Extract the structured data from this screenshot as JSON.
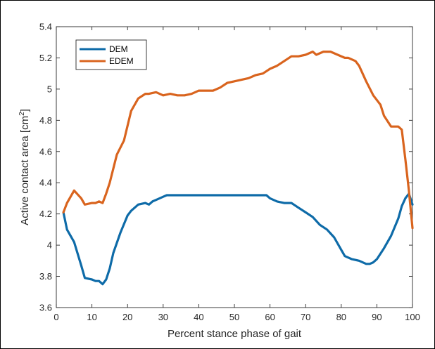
{
  "chart_data": {
    "type": "line",
    "title": "",
    "xlabel": "Percent stance phase of gait",
    "ylabel_main": "Active contact area [cm",
    "ylabel_sup": "2",
    "ylabel_end": "]",
    "xlim": [
      0,
      100
    ],
    "ylim": [
      3.6,
      5.4
    ],
    "xticks": [
      0,
      10,
      20,
      30,
      40,
      50,
      60,
      70,
      80,
      90,
      100
    ],
    "xtick_labels": [
      "0",
      "10",
      "20",
      "30",
      "40",
      "50",
      "60",
      "70",
      "80",
      "90",
      "100"
    ],
    "yticks": [
      3.6,
      3.8,
      4,
      4.2,
      4.4,
      4.6,
      4.8,
      5,
      5.2,
      5.4
    ],
    "ytick_labels": [
      "3.6",
      "3.8",
      "4",
      "4.2",
      "4.4",
      "4.6",
      "4.8",
      "5",
      "5.2",
      "5.4"
    ],
    "grid": false,
    "legend_position": "top-left",
    "series": [
      {
        "name": "DEM",
        "color": "#0e6ba8",
        "x": [
          2,
          3,
          5,
          7,
          8,
          10,
          11,
          12,
          13,
          14,
          15,
          16,
          18,
          20,
          21,
          23,
          25,
          26,
          27,
          28,
          30,
          31,
          33,
          35,
          37,
          39,
          41,
          43,
          45,
          47,
          49,
          51,
          53,
          55,
          57,
          59,
          60,
          62,
          64,
          66,
          68,
          70,
          72,
          74,
          76,
          78,
          80,
          81,
          83,
          85,
          86,
          87,
          88,
          89,
          90,
          92,
          94,
          96,
          97,
          98,
          99,
          100
        ],
        "y": [
          4.21,
          4.1,
          4.02,
          3.87,
          3.79,
          3.78,
          3.77,
          3.77,
          3.75,
          3.78,
          3.85,
          3.95,
          4.08,
          4.19,
          4.22,
          4.26,
          4.27,
          4.26,
          4.28,
          4.29,
          4.31,
          4.32,
          4.32,
          4.32,
          4.32,
          4.32,
          4.32,
          4.32,
          4.32,
          4.32,
          4.32,
          4.32,
          4.32,
          4.32,
          4.32,
          4.32,
          4.3,
          4.28,
          4.27,
          4.27,
          4.24,
          4.21,
          4.18,
          4.13,
          4.1,
          4.05,
          3.97,
          3.93,
          3.91,
          3.9,
          3.89,
          3.88,
          3.88,
          3.89,
          3.91,
          3.98,
          4.06,
          4.17,
          4.25,
          4.3,
          4.33,
          4.26
        ]
      },
      {
        "name": "EDEM",
        "color": "#d9641e",
        "x": [
          2,
          3,
          5,
          7,
          8,
          10,
          11,
          12,
          13,
          14,
          15,
          17,
          19,
          21,
          23,
          25,
          26,
          28,
          30,
          32,
          34,
          36,
          38,
          40,
          42,
          44,
          46,
          48,
          50,
          52,
          54,
          56,
          58,
          60,
          62,
          64,
          66,
          68,
          70,
          72,
          73,
          75,
          77,
          79,
          81,
          82,
          84,
          85,
          87,
          89,
          91,
          92,
          94,
          96,
          97,
          98,
          99,
          100
        ],
        "y": [
          4.21,
          4.27,
          4.35,
          4.3,
          4.26,
          4.27,
          4.27,
          4.28,
          4.27,
          4.33,
          4.4,
          4.58,
          4.67,
          4.86,
          4.94,
          4.97,
          4.97,
          4.98,
          4.96,
          4.97,
          4.96,
          4.96,
          4.97,
          4.99,
          4.99,
          4.99,
          5.01,
          5.04,
          5.05,
          5.06,
          5.07,
          5.09,
          5.1,
          5.13,
          5.15,
          5.18,
          5.21,
          5.21,
          5.22,
          5.24,
          5.22,
          5.24,
          5.24,
          5.22,
          5.2,
          5.2,
          5.18,
          5.15,
          5.05,
          4.96,
          4.9,
          4.83,
          4.76,
          4.76,
          4.74,
          4.55,
          4.35,
          4.11
        ]
      }
    ]
  }
}
